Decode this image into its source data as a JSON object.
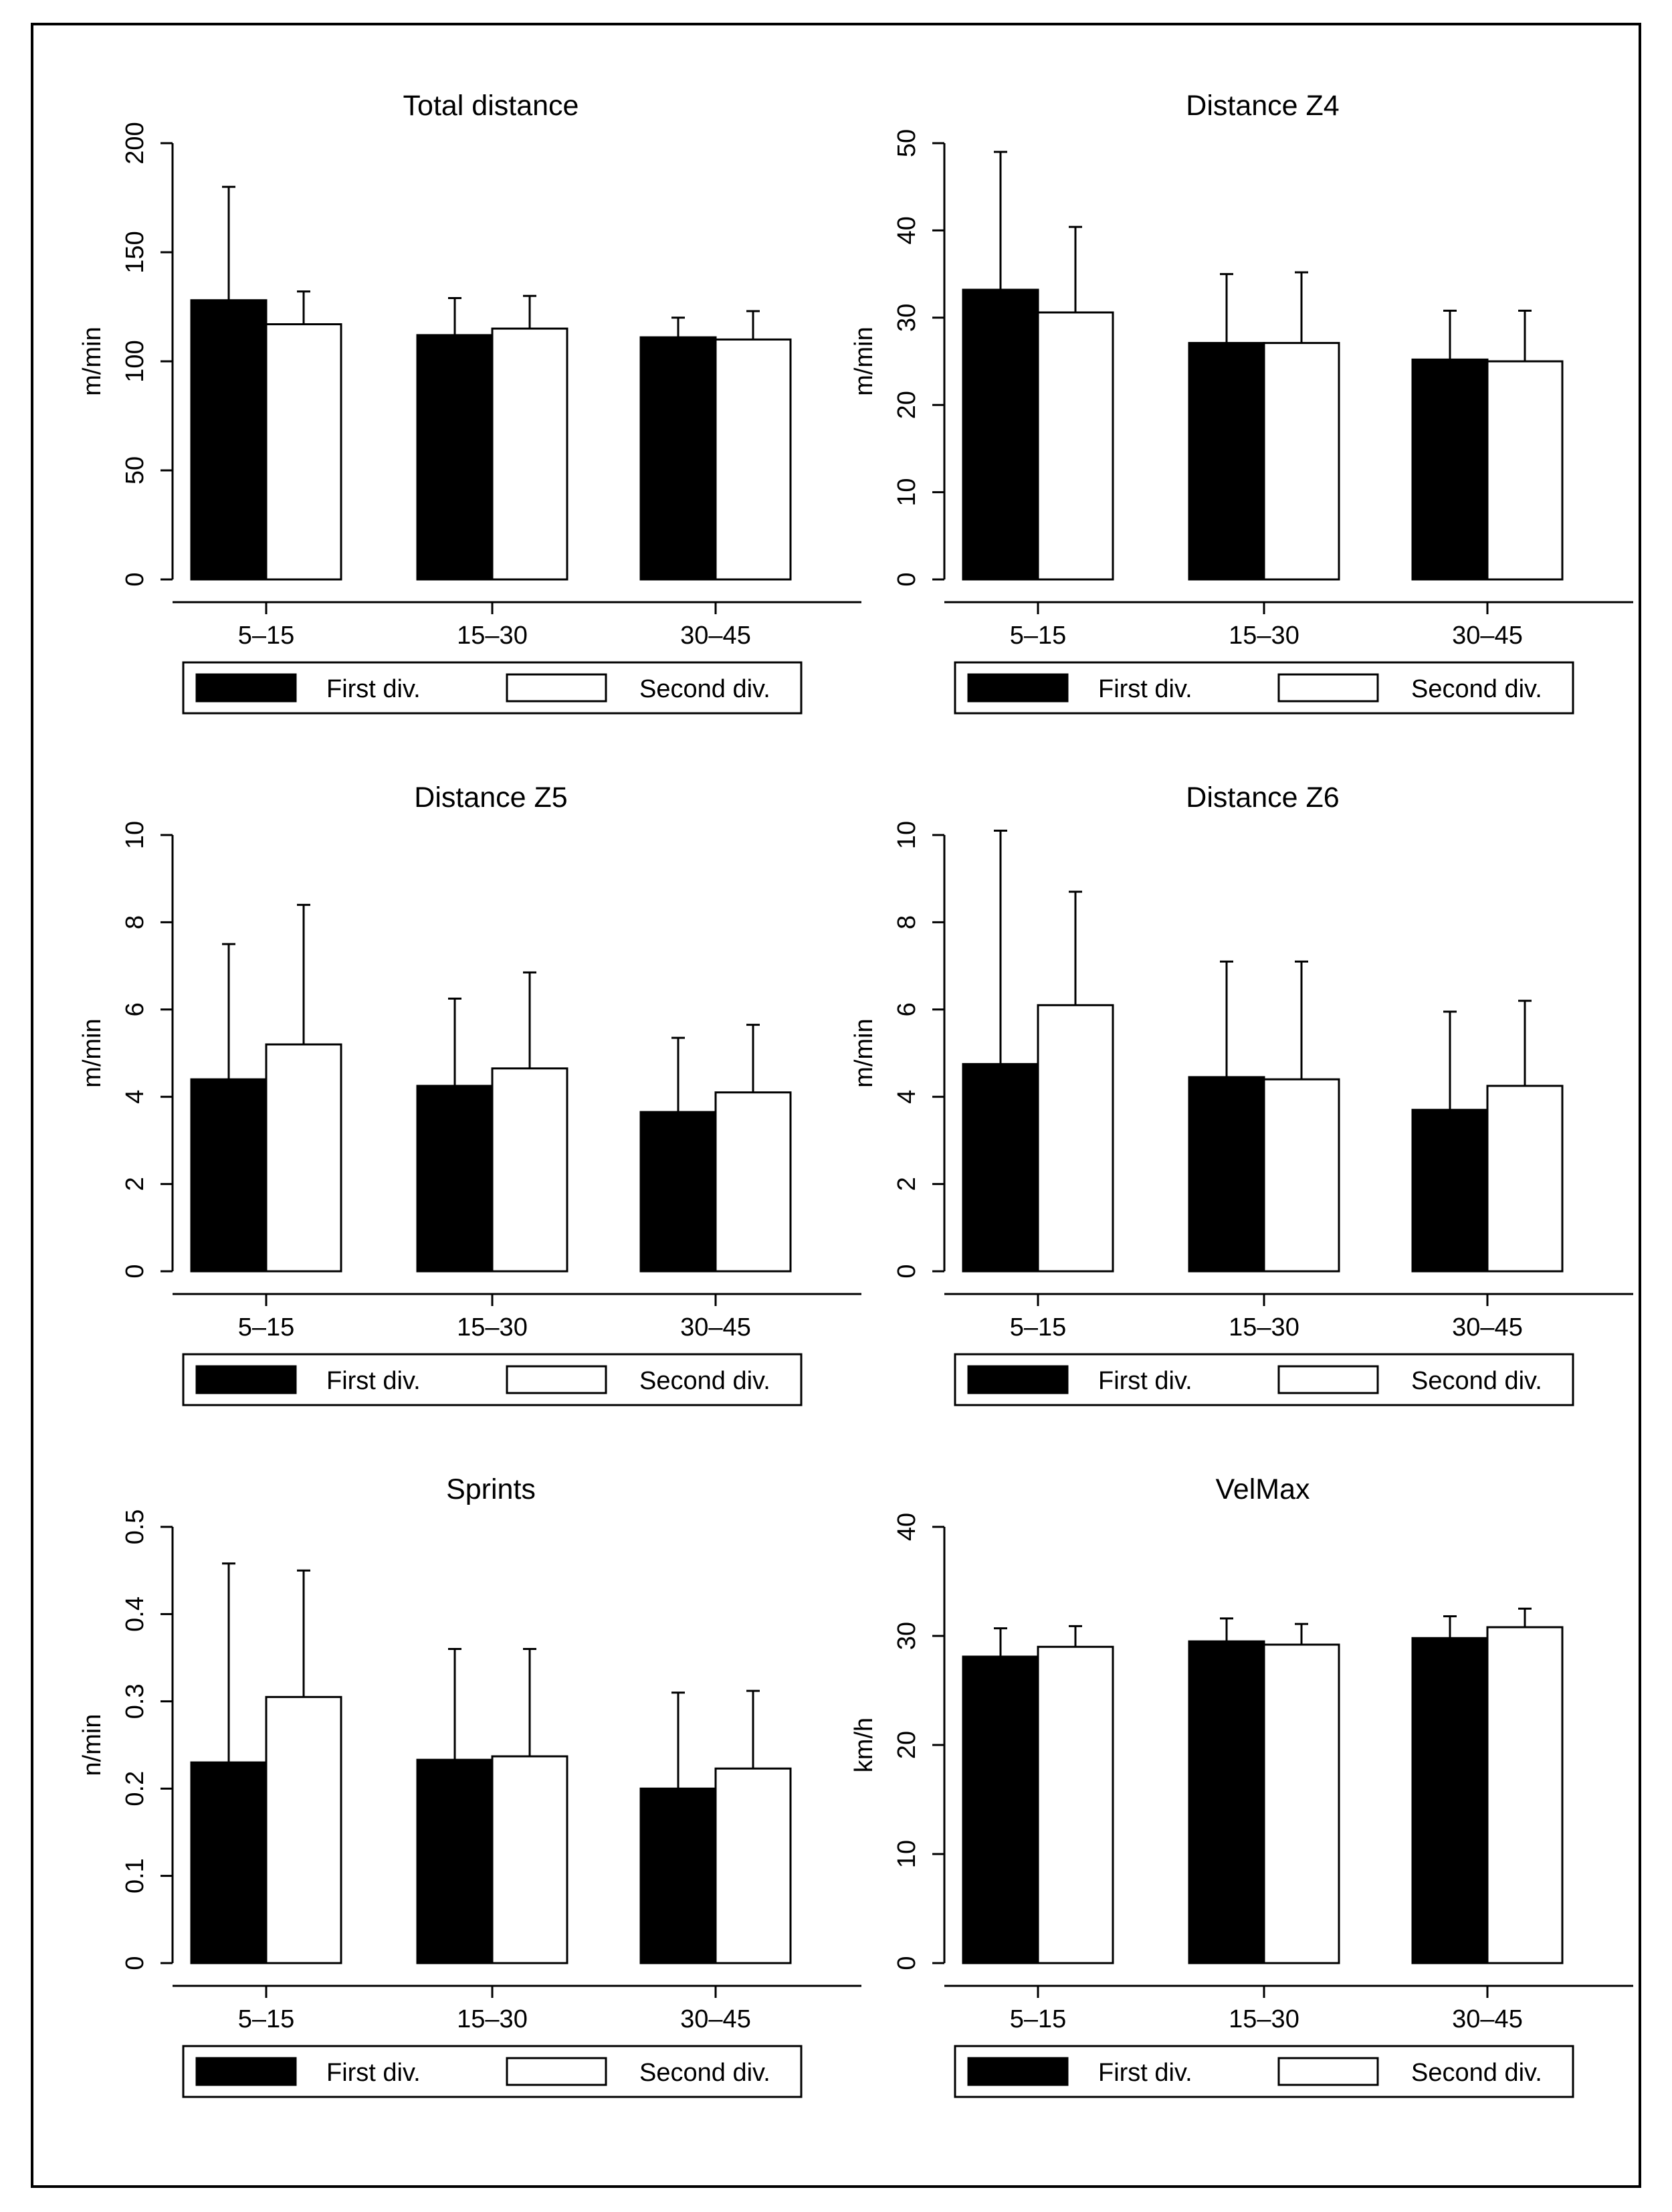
{
  "colors": {
    "first_div": "#000000",
    "second_div": "#ffffff",
    "ink": "#000000"
  },
  "chart_data": [
    {
      "type": "bar",
      "title": "Total distance",
      "xlabel": "",
      "ylabel": "m/min",
      "categories": [
        "5–15",
        "15–30",
        "30–45"
      ],
      "ylim": [
        0,
        200
      ],
      "yticks": [
        0,
        50,
        100,
        150,
        200
      ],
      "ytick_labels": [
        "0",
        "50",
        "100",
        "150",
        "200"
      ],
      "series": [
        {
          "name": "First div.",
          "values": [
            128,
            112,
            111
          ],
          "error_upper": [
            180,
            129,
            120
          ]
        },
        {
          "name": "Second div.",
          "values": [
            117,
            115,
            110
          ],
          "error_upper": [
            132,
            130,
            123
          ]
        }
      ]
    },
    {
      "type": "bar",
      "title": "Distance Z4",
      "xlabel": "",
      "ylabel": "m/min",
      "categories": [
        "5–15",
        "15–30",
        "30–45"
      ],
      "ylim": [
        0,
        50
      ],
      "yticks": [
        0,
        10,
        20,
        30,
        40,
        50
      ],
      "ytick_labels": [
        "0",
        "10",
        "20",
        "30",
        "40",
        "50"
      ],
      "series": [
        {
          "name": "First div.",
          "values": [
            33.2,
            27.1,
            25.2
          ],
          "error_upper": [
            49,
            35,
            30.8
          ]
        },
        {
          "name": "Second div.",
          "values": [
            30.6,
            27.1,
            25.0
          ],
          "error_upper": [
            40.4,
            35.2,
            30.8
          ]
        }
      ]
    },
    {
      "type": "bar",
      "title": "Distance Z5",
      "xlabel": "",
      "ylabel": "m/min",
      "categories": [
        "5–15",
        "15–30",
        "30–45"
      ],
      "ylim": [
        0,
        10
      ],
      "yticks": [
        0,
        2,
        4,
        6,
        8,
        10
      ],
      "ytick_labels": [
        "0",
        "2",
        "4",
        "6",
        "8",
        "10"
      ],
      "series": [
        {
          "name": "First div.",
          "values": [
            4.4,
            4.25,
            3.65
          ],
          "error_upper": [
            7.5,
            6.25,
            5.35
          ]
        },
        {
          "name": "Second div.",
          "values": [
            5.2,
            4.65,
            4.1
          ],
          "error_upper": [
            8.4,
            6.85,
            5.65
          ]
        }
      ]
    },
    {
      "type": "bar",
      "title": "Distance Z6",
      "xlabel": "",
      "ylabel": "m/min",
      "categories": [
        "5–15",
        "15–30",
        "30–45"
      ],
      "ylim": [
        0,
        10
      ],
      "yticks": [
        0,
        2,
        4,
        6,
        8,
        10
      ],
      "ytick_labels": [
        "0",
        "2",
        "4",
        "6",
        "8",
        "10"
      ],
      "series": [
        {
          "name": "First div.",
          "values": [
            4.75,
            4.45,
            3.7
          ],
          "error_upper": [
            10.1,
            7.1,
            5.95
          ]
        },
        {
          "name": "Second div.",
          "values": [
            6.1,
            4.4,
            4.25
          ],
          "error_upper": [
            8.7,
            7.1,
            6.2
          ]
        }
      ]
    },
    {
      "type": "bar",
      "title": "Sprints",
      "xlabel": "",
      "ylabel": "n/min",
      "categories": [
        "5–15",
        "15–30",
        "30–45"
      ],
      "ylim": [
        0,
        0.5
      ],
      "yticks": [
        0,
        0.1,
        0.2,
        0.3,
        0.4,
        0.5
      ],
      "ytick_labels": [
        "0",
        "0.1",
        "0.2",
        "0.3",
        "0.4",
        "0.5"
      ],
      "series": [
        {
          "name": "First div.",
          "values": [
            0.23,
            0.233,
            0.2
          ],
          "error_upper": [
            0.458,
            0.36,
            0.31
          ]
        },
        {
          "name": "Second div.",
          "values": [
            0.305,
            0.237,
            0.223
          ],
          "error_upper": [
            0.45,
            0.36,
            0.312
          ]
        }
      ]
    },
    {
      "type": "bar",
      "title": "VelMax",
      "xlabel": "",
      "ylabel": "km/h",
      "categories": [
        "5–15",
        "15–30",
        "30–45"
      ],
      "ylim": [
        0,
        40
      ],
      "yticks": [
        0,
        10,
        20,
        30,
        40
      ],
      "ytick_labels": [
        "0",
        "10",
        "20",
        "30",
        "40"
      ],
      "series": [
        {
          "name": "First div.",
          "values": [
            28.1,
            29.5,
            29.8
          ],
          "error_upper": [
            30.7,
            31.6,
            31.8
          ]
        },
        {
          "name": "Second div.",
          "values": [
            29.0,
            29.2,
            30.8
          ],
          "error_upper": [
            30.9,
            31.1,
            32.5
          ]
        }
      ]
    }
  ]
}
